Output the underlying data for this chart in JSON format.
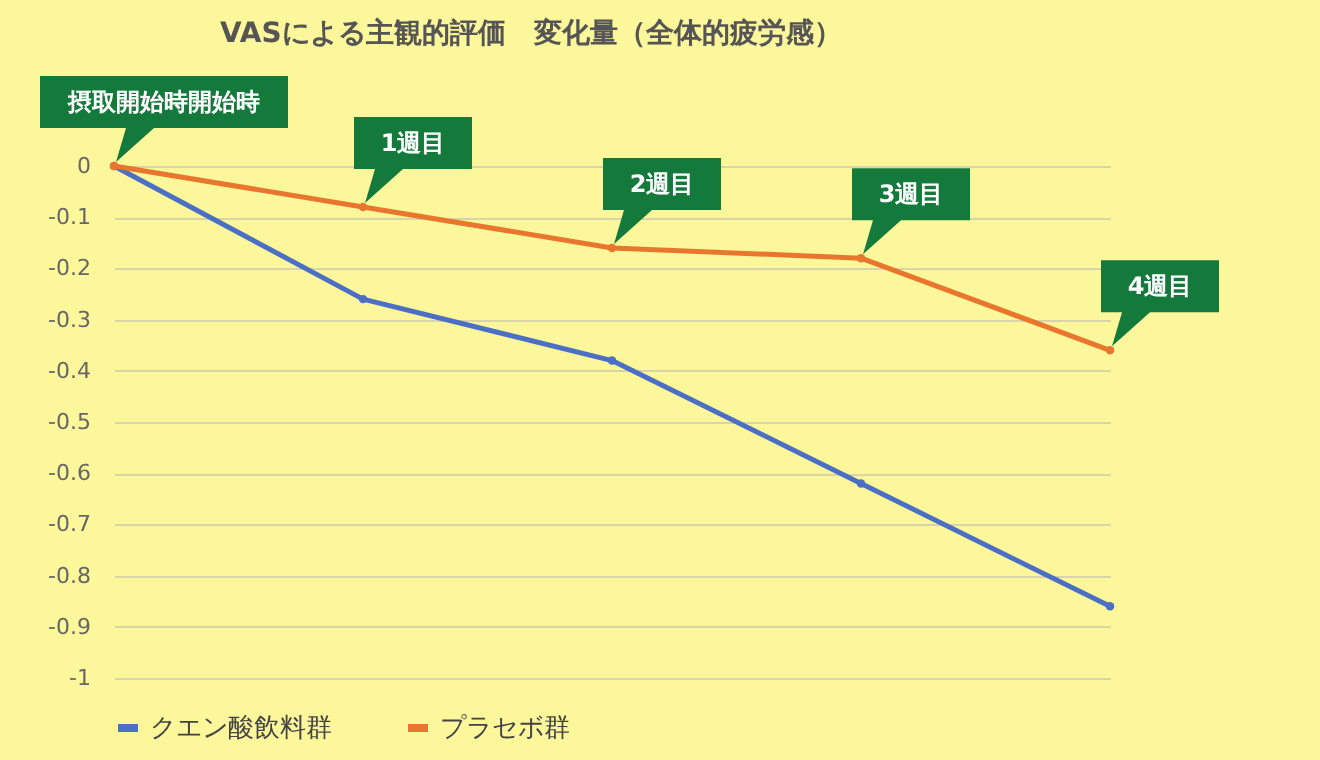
{
  "chart_data": {
    "type": "line",
    "title": "VASによる主観的評価　変化量（全体的疲労感）",
    "categories": [
      "摂取開始時開始時",
      "1週目",
      "2週目",
      "3週目",
      "4週目"
    ],
    "series": [
      {
        "name": "クエン酸飲料群",
        "color": "#4a6fc4",
        "values": [
          0,
          -0.26,
          -0.38,
          -0.62,
          -0.86
        ]
      },
      {
        "name": "プラセボ群",
        "color": "#e8762d",
        "values": [
          0,
          -0.08,
          -0.16,
          -0.18,
          -0.36
        ]
      }
    ],
    "ylim": [
      -1,
      0
    ],
    "yticks": [
      0,
      -0.1,
      -0.2,
      -0.3,
      -0.4,
      -0.5,
      -0.6,
      -0.7,
      -0.8,
      -0.9,
      -1
    ],
    "grid": "y",
    "legend": "bottom",
    "marker": "circle",
    "tick_labels": "y"
  }
}
